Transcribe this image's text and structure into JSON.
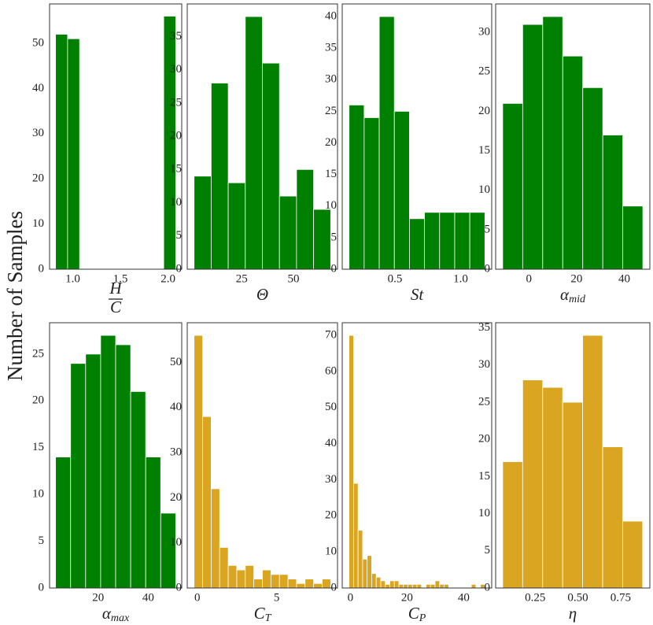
{
  "ylabel": "Number of Samples",
  "chart_data": [
    {
      "type": "histogram",
      "xlabel": "H",
      "xlabel_denominator": "C",
      "color": "#008000",
      "bins": [
        0.82,
        0.946,
        1.072,
        1.198,
        1.324,
        1.45,
        1.576,
        1.702,
        1.828,
        1.954,
        2.08
      ],
      "values": [
        52,
        51,
        0,
        0,
        0,
        0,
        0,
        0,
        0,
        56
      ],
      "xlim": [
        0.757,
        2.143
      ],
      "xticks": [
        {
          "value": 1.0,
          "label": "1.0"
        },
        1.5,
        {
          "value": 2.0,
          "label": "2.0"
        }
      ],
      "ylim": [
        0,
        58.7
      ],
      "yticks": [
        0,
        10,
        20,
        30,
        40,
        50
      ]
    },
    {
      "type": "histogram",
      "xlabel": "Θ",
      "color": "#008000",
      "bins": [
        2,
        10.25,
        18.5,
        26.75,
        35,
        43.25,
        51.5,
        59.75,
        68
      ],
      "values": [
        14,
        28,
        13,
        38,
        31,
        11,
        15,
        9
      ],
      "xlim": [
        -1.3,
        71.3
      ],
      "xticks": [
        25,
        50
      ],
      "ylim": [
        0,
        39.9
      ],
      "yticks": [
        0,
        5,
        10,
        15,
        20,
        25,
        30,
        35
      ]
    },
    {
      "type": "histogram",
      "xlabel": "St",
      "color": "#008000",
      "bins": [
        0.15,
        0.265,
        0.38,
        0.495,
        0.61,
        0.725,
        0.84,
        0.955,
        1.07,
        1.185
      ],
      "values": [
        26,
        24,
        40,
        25,
        8,
        9,
        9,
        9,
        9
      ],
      "xlim": [
        0.098,
        1.237
      ],
      "xticks": [
        0.5,
        {
          "value": 1.0,
          "label": "1.0"
        }
      ],
      "ylim": [
        0,
        42
      ],
      "yticks": [
        0,
        5,
        10,
        15,
        20,
        25,
        30,
        35,
        40
      ]
    },
    {
      "type": "histogram",
      "xlabel": "α",
      "xlabel_sub": "mid",
      "color": "#008000",
      "bins": [
        -11,
        -2.6,
        5.8,
        14.2,
        22.6,
        31,
        39.4,
        47.8
      ],
      "values": [
        21,
        31,
        32,
        27,
        23,
        17,
        8
      ],
      "xlim": [
        -13.94,
        50.74
      ],
      "xticks": [
        0,
        20,
        40
      ],
      "ylim": [
        0,
        33.6
      ],
      "yticks": [
        0,
        5,
        10,
        15,
        20,
        25,
        30
      ]
    },
    {
      "type": "histogram",
      "xlabel": "α",
      "xlabel_sub": "max",
      "color": "#008000",
      "bins": [
        3,
        9,
        15,
        21,
        27,
        33,
        39,
        45,
        51
      ],
      "values": [
        14,
        24,
        25,
        27,
        26,
        21,
        14,
        8
      ],
      "xlim": [
        0.6,
        53.4
      ],
      "xticks": [
        20,
        40
      ],
      "ylim": [
        0,
        28.35
      ],
      "yticks": [
        0,
        5,
        10,
        15,
        20,
        25
      ]
    },
    {
      "type": "histogram",
      "xlabel": "C",
      "xlabel_sub": "T",
      "color": "#daa520",
      "bins": [
        -0.2,
        0.3375,
        0.875,
        1.4125,
        1.95,
        2.4875,
        3.025,
        3.5625,
        4.1,
        4.6375,
        5.175,
        5.7125,
        6.25,
        6.7875,
        7.325,
        7.8625,
        8.4
      ],
      "values": [
        56,
        38,
        22,
        9,
        5,
        4,
        5,
        2,
        4,
        3,
        3,
        2,
        1,
        2,
        1,
        2
      ],
      "xlim": [
        -0.63,
        8.83
      ],
      "xticks": [
        0,
        5
      ],
      "ylim": [
        0,
        58.8
      ],
      "yticks": [
        0,
        10,
        20,
        30,
        40,
        50
      ]
    },
    {
      "type": "histogram",
      "xlabel": "C",
      "xlabel_sub": "P",
      "color": "#daa520",
      "bins": [
        -0.5,
        1.1,
        2.7,
        4.3,
        5.9,
        7.5,
        9.1,
        10.7,
        12.3,
        13.9,
        15.5,
        17.1,
        18.7,
        20.3,
        21.9,
        23.5,
        25.1,
        26.7,
        28.3,
        29.9,
        31.5,
        33.1,
        34.7,
        36.3,
        37.9,
        39.5,
        41.1,
        42.7,
        44.3,
        45.9,
        47.5
      ],
      "values": [
        70,
        29,
        16,
        8,
        9,
        4,
        3,
        2,
        1,
        2,
        2,
        1,
        1,
        1,
        1,
        1,
        0,
        1,
        1,
        2,
        1,
        1,
        0,
        0,
        0,
        0,
        0,
        1,
        0,
        1
      ],
      "xlim": [
        -2.9,
        49.9
      ],
      "xticks": [
        0,
        20,
        40
      ],
      "ylim": [
        0,
        73.5
      ],
      "yticks": [
        0,
        10,
        20,
        30,
        40,
        50,
        60,
        70
      ]
    },
    {
      "type": "histogram",
      "xlabel": "η",
      "color": "#daa520",
      "bins": [
        0.06,
        0.177,
        0.294,
        0.411,
        0.528,
        0.645,
        0.762,
        0.879
      ],
      "values": [
        17,
        28,
        27,
        25,
        34,
        19,
        9
      ],
      "xlim": [
        0.019,
        0.921
      ],
      "xticks": [
        0.25,
        {
          "value": 0.5,
          "label": "0.50"
        },
        0.75
      ],
      "ylim": [
        0,
        35.7
      ],
      "yticks": [
        0,
        5,
        10,
        15,
        20,
        25,
        30,
        35
      ]
    }
  ]
}
